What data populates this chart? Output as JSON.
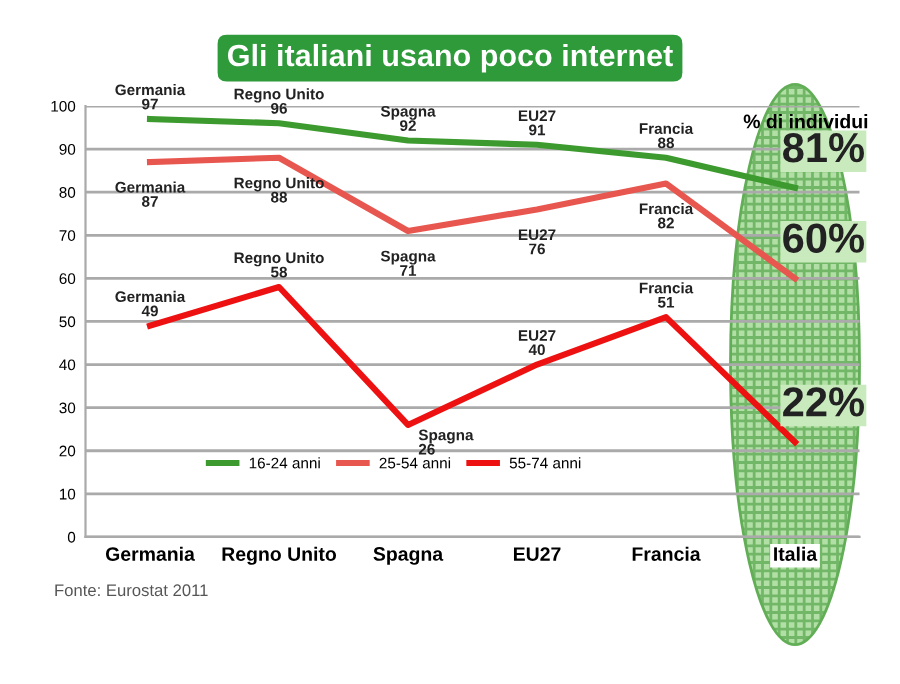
{
  "chart_data": {
    "type": "line",
    "title": "Gli italiani usano poco internet",
    "categories": [
      "Germania",
      "Regno Unito",
      "Spagna",
      "EU27",
      "Francia",
      "Italia"
    ],
    "series": [
      {
        "name": "16-24 anni",
        "color": "#3c9a2e",
        "values": [
          97,
          96,
          92,
          91,
          88,
          81
        ],
        "value_labels": [
          "Germania\n97",
          "Regno Unito\n96",
          "Spagna\n92",
          "EU27\n91",
          "Francia\n88",
          "81%"
        ]
      },
      {
        "name": "25-54 anni",
        "color": "#e8574f",
        "values": [
          87,
          88,
          71,
          76,
          82,
          60
        ],
        "value_labels": [
          "Germania\n87",
          "Regno Unito\n88",
          "Spagna\n71",
          "EU27\n76",
          "Francia\n82",
          "60%"
        ]
      },
      {
        "name": "55-74 anni",
        "color": "#ee1111",
        "values": [
          49,
          58,
          26,
          40,
          51,
          22
        ],
        "value_labels": [
          "Germania\n49",
          "Regno Unito\n58",
          "Spagna\n26",
          "EU27\n40",
          "Francia\n51",
          "22%"
        ]
      }
    ],
    "ylim": [
      0,
      100
    ],
    "yticks": [
      0,
      10,
      20,
      30,
      40,
      50,
      60,
      70,
      80,
      90,
      100
    ],
    "grid": "y",
    "legend": "bottom",
    "marker": "none",
    "line_style": "solid",
    "annotations": [
      "% di individui",
      "Fonte: Eurostat 2011"
    ]
  }
}
